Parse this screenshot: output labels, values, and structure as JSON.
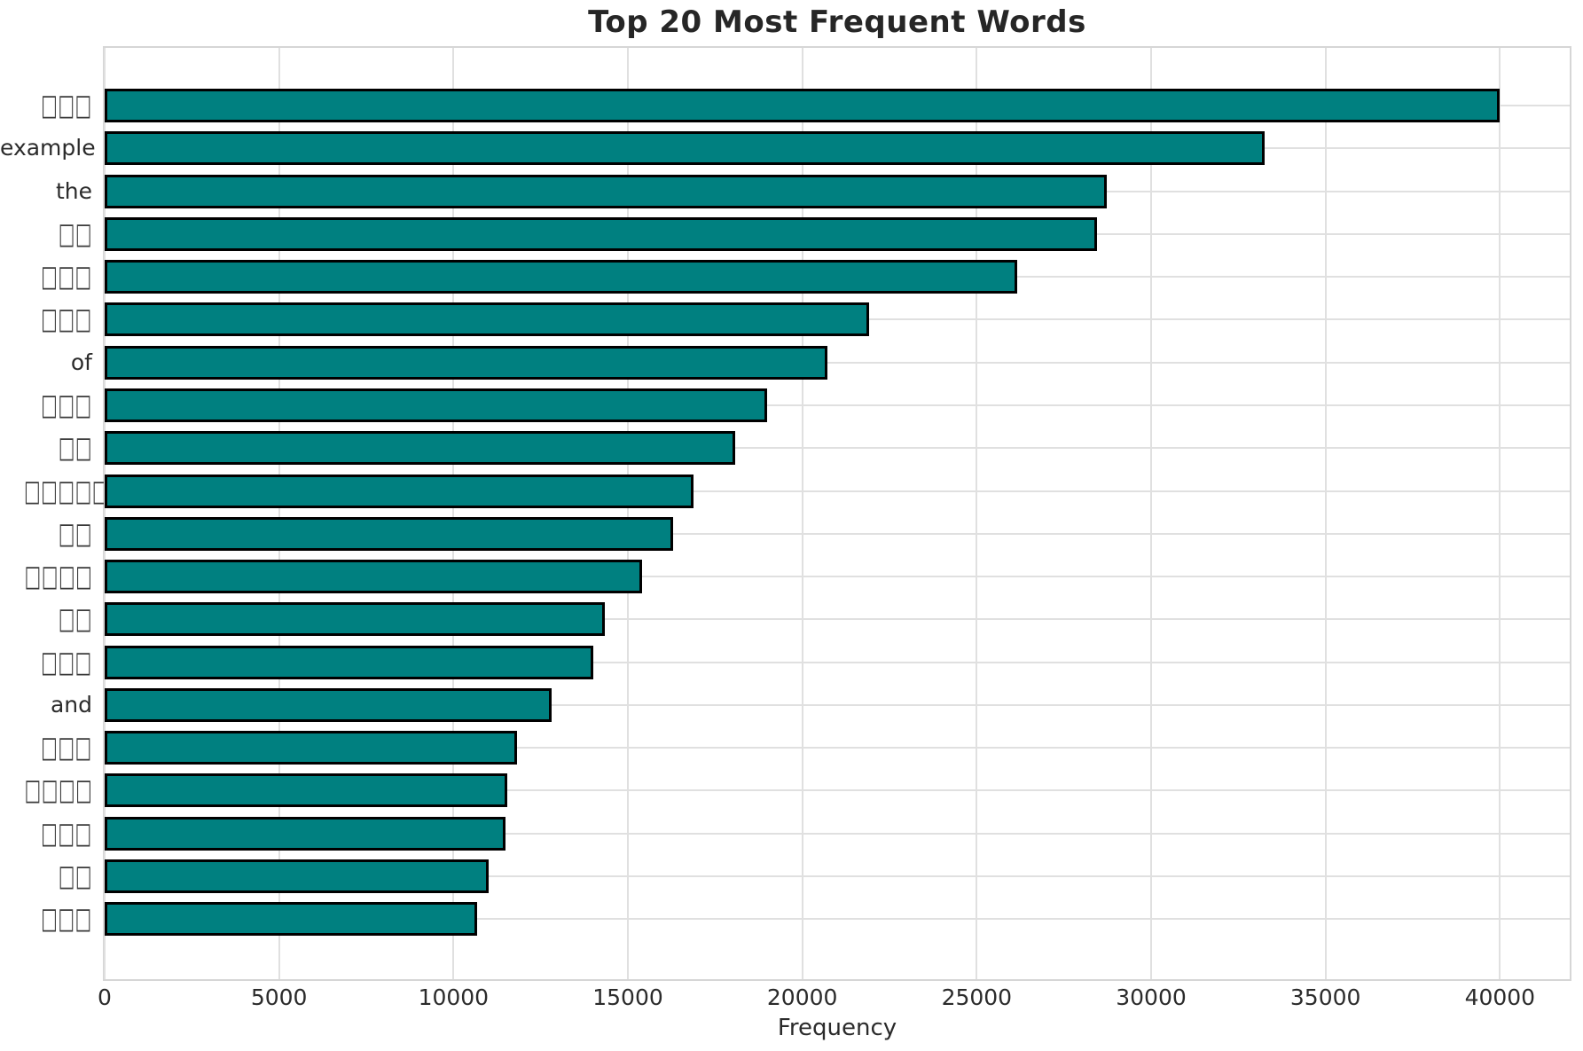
{
  "chart_data": {
    "type": "bar",
    "orientation": "horizontal",
    "title": "Top 20 Most Frequent Words",
    "xlabel": "Frequency",
    "ylabel": "",
    "categories": [
      "□□□",
      "example",
      "the",
      "□□",
      "□□□",
      "□□□",
      "of",
      "□□□",
      "□□",
      "□□□□□",
      "□□",
      "□□□□",
      "□□",
      "□□□",
      "and",
      "□□□",
      "□□□□",
      "□□□",
      "□□",
      "□□□"
    ],
    "values": [
      40000,
      33250,
      28720,
      28450,
      26160,
      21910,
      20710,
      19000,
      18080,
      16890,
      16290,
      15400,
      14350,
      14000,
      12820,
      11830,
      11530,
      11480,
      11020,
      10690
    ],
    "xticks": [
      0,
      5000,
      10000,
      15000,
      20000,
      25000,
      30000,
      35000,
      40000
    ],
    "xlim": [
      0,
      42000
    ],
    "grid": "both",
    "legend": "none",
    "bar_color": "#008080",
    "bar_edge_color": "#000000",
    "grid_color": "#e0e0e0",
    "text_color": "#2b2b2b",
    "title_color": "#262626",
    "note": "y-axis labels shown as □ are missing-glyph (tofu) boxes in the rendered image"
  }
}
